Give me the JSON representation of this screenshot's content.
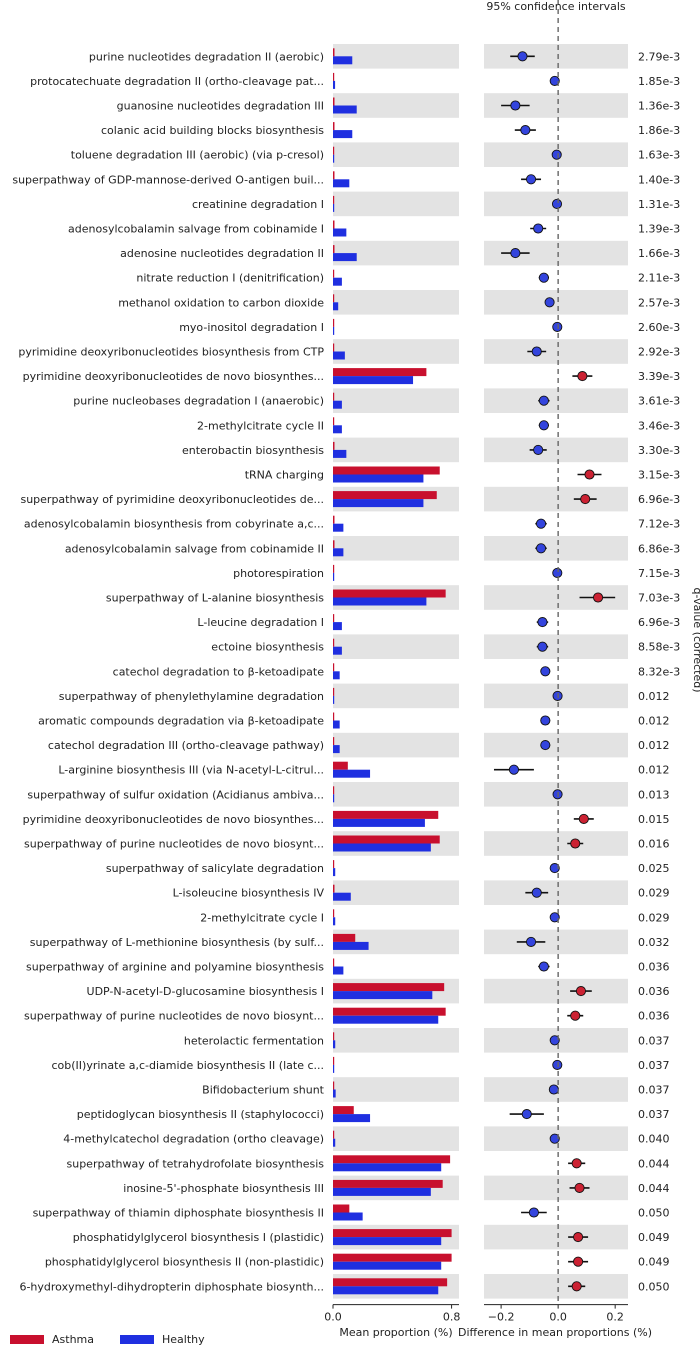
{
  "chart_data": {
    "type": "extended-error-bar",
    "title": "95% confidence intervals",
    "left_xlabel": "Mean proportion (%)",
    "right_xlabel": "Difference in mean proportions (%)",
    "qvalue_label": "q-value (corrected)",
    "left_xlim": [
      0,
      0.85
    ],
    "left_ticks": [
      {
        "v": 0.0,
        "label": "0.0"
      },
      {
        "v": 0.8,
        "label": "0.8"
      }
    ],
    "right_xlim": [
      -0.26,
      0.245
    ],
    "right_ticks": [
      {
        "v": -0.2,
        "label": "−0.2"
      },
      {
        "v": 0.0,
        "label": "0.0"
      },
      {
        "v": 0.2,
        "label": "0.2"
      }
    ],
    "groups": [
      {
        "name": "Asthma",
        "color": "#c8102e"
      },
      {
        "name": "Healthy",
        "color": "#1f2fe0"
      }
    ],
    "colors": {
      "asthma": "#c8102e",
      "healthy": "#1f2fe0",
      "neg_dot": "#3344dd",
      "pos_dot": "#cc2233",
      "band": "#e3e3e3"
    },
    "rows": [
      {
        "label": "purine nucleotides degradation II (aerobic)",
        "asthma": 0.01,
        "healthy": 0.13,
        "diff": -0.125,
        "ci": [
          -0.168,
          -0.082
        ],
        "q": "2.79e-3"
      },
      {
        "label": "protocatechuate degradation II (ortho-cleavage pat...",
        "asthma": 0.002,
        "healthy": 0.014,
        "diff": -0.012,
        "ci": [
          -0.016,
          -0.008
        ],
        "q": "1.85e-3"
      },
      {
        "label": "guanosine nucleotides degradation III",
        "asthma": 0.01,
        "healthy": 0.16,
        "diff": -0.15,
        "ci": [
          -0.2,
          -0.1
        ],
        "q": "1.36e-3"
      },
      {
        "label": "colanic acid building blocks biosynthesis",
        "asthma": 0.01,
        "healthy": 0.13,
        "diff": -0.115,
        "ci": [
          -0.152,
          -0.078
        ],
        "q": "1.86e-3"
      },
      {
        "label": "toluene degradation III (aerobic) (via p-cresol)",
        "asthma": 0.001,
        "healthy": 0.008,
        "diff": -0.005,
        "ci": [
          -0.008,
          -0.002
        ],
        "q": "1.63e-3"
      },
      {
        "label": "superpathway of GDP-mannose-derived O-antigen buil...",
        "asthma": 0.01,
        "healthy": 0.11,
        "diff": -0.095,
        "ci": [
          -0.13,
          -0.06
        ],
        "q": "1.40e-3"
      },
      {
        "label": "creatinine degradation I",
        "asthma": 0.001,
        "healthy": 0.005,
        "diff": -0.004,
        "ci": [
          -0.007,
          -0.001
        ],
        "q": "1.31e-3"
      },
      {
        "label": "adenosylcobalamin salvage from cobinamide I",
        "asthma": 0.01,
        "healthy": 0.09,
        "diff": -0.07,
        "ci": [
          -0.098,
          -0.042
        ],
        "q": "1.39e-3"
      },
      {
        "label": "adenosine nucleotides degradation II",
        "asthma": 0.01,
        "healthy": 0.16,
        "diff": -0.15,
        "ci": [
          -0.2,
          -0.1
        ],
        "q": "1.66e-3"
      },
      {
        "label": "nitrate reduction I (denitrification)",
        "asthma": 0.005,
        "healthy": 0.06,
        "diff": -0.05,
        "ci": [
          -0.068,
          -0.032
        ],
        "q": "2.11e-3"
      },
      {
        "label": "methanol oxidation to carbon dioxide",
        "asthma": 0.003,
        "healthy": 0.035,
        "diff": -0.03,
        "ci": [
          -0.042,
          -0.018
        ],
        "q": "2.57e-3"
      },
      {
        "label": "myo-inositol degradation I",
        "asthma": 0.001,
        "healthy": 0.004,
        "diff": -0.003,
        "ci": [
          -0.006,
          0.0
        ],
        "q": "2.60e-3"
      },
      {
        "label": "pyrimidine deoxyribonucleotides biosynthesis from CTP",
        "asthma": 0.008,
        "healthy": 0.08,
        "diff": -0.075,
        "ci": [
          -0.108,
          -0.042
        ],
        "q": "2.92e-3"
      },
      {
        "label": "pyrimidine deoxyribonucleotides de novo biosynthes...",
        "asthma": 0.63,
        "healthy": 0.54,
        "diff": 0.085,
        "ci": [
          0.05,
          0.12
        ],
        "q": "3.39e-3"
      },
      {
        "label": "purine nucleobases degradation I (anaerobic)",
        "asthma": 0.005,
        "healthy": 0.06,
        "diff": -0.05,
        "ci": [
          -0.07,
          -0.03
        ],
        "q": "3.61e-3"
      },
      {
        "label": "2-methylcitrate cycle II",
        "asthma": 0.005,
        "healthy": 0.06,
        "diff": -0.05,
        "ci": [
          -0.068,
          -0.032
        ],
        "q": "3.46e-3"
      },
      {
        "label": "enterobactin biosynthesis",
        "asthma": 0.01,
        "healthy": 0.09,
        "diff": -0.07,
        "ci": [
          -0.1,
          -0.04
        ],
        "q": "3.30e-3"
      },
      {
        "label": "tRNA charging",
        "asthma": 0.72,
        "healthy": 0.61,
        "diff": 0.11,
        "ci": [
          0.068,
          0.152
        ],
        "q": "3.15e-3"
      },
      {
        "label": "superpathway of pyrimidine deoxyribonucleotides de...",
        "asthma": 0.7,
        "healthy": 0.61,
        "diff": 0.095,
        "ci": [
          0.055,
          0.135
        ],
        "q": "6.96e-3"
      },
      {
        "label": "adenosylcobalamin biosynthesis from cobyrinate a,c...",
        "asthma": 0.01,
        "healthy": 0.07,
        "diff": -0.06,
        "ci": [
          -0.08,
          -0.04
        ],
        "q": "7.12e-3"
      },
      {
        "label": "adenosylcobalamin salvage from cobinamide II",
        "asthma": 0.01,
        "healthy": 0.07,
        "diff": -0.06,
        "ci": [
          -0.08,
          -0.04
        ],
        "q": "6.86e-3"
      },
      {
        "label": "photorespiration",
        "asthma": 0.001,
        "healthy": 0.004,
        "diff": -0.003,
        "ci": [
          -0.006,
          0.0
        ],
        "q": "7.15e-3"
      },
      {
        "label": "superpathway of L-alanine biosynthesis",
        "asthma": 0.76,
        "healthy": 0.63,
        "diff": 0.14,
        "ci": [
          0.075,
          0.2
        ],
        "q": "7.03e-3"
      },
      {
        "label": "L-leucine degradation I",
        "asthma": 0.005,
        "healthy": 0.06,
        "diff": -0.055,
        "ci": [
          -0.075,
          -0.035
        ],
        "q": "6.96e-3"
      },
      {
        "label": "ectoine biosynthesis",
        "asthma": 0.005,
        "healthy": 0.06,
        "diff": -0.055,
        "ci": [
          -0.075,
          -0.035
        ],
        "q": "8.58e-3"
      },
      {
        "label": "catechol degradation to &beta;-ketoadipate",
        "asthma": 0.004,
        "healthy": 0.045,
        "diff": -0.045,
        "ci": [
          -0.062,
          -0.028
        ],
        "q": "8.32e-3"
      },
      {
        "label": "superpathway of phenylethylamine degradation",
        "asthma": 0.001,
        "healthy": 0.005,
        "diff": -0.002,
        "ci": [
          -0.005,
          0.001
        ],
        "q": "0.012"
      },
      {
        "label": "aromatic compounds degradation via &beta;-ketoadipate",
        "asthma": 0.004,
        "healthy": 0.045,
        "diff": -0.045,
        "ci": [
          -0.062,
          -0.028
        ],
        "q": "0.012"
      },
      {
        "label": "catechol degradation III (ortho-cleavage pathway)",
        "asthma": 0.004,
        "healthy": 0.045,
        "diff": -0.045,
        "ci": [
          -0.062,
          -0.028
        ],
        "q": "0.012"
      },
      {
        "label": "L-arginine biosynthesis III (via N-acetyl-L-citrul...",
        "asthma": 0.1,
        "healthy": 0.25,
        "diff": -0.155,
        "ci": [
          -0.225,
          -0.085
        ],
        "q": "0.012"
      },
      {
        "label": "superpathway of sulfur oxidation (Acidianus ambiva...",
        "asthma": 0.001,
        "healthy": 0.004,
        "diff": -0.002,
        "ci": [
          -0.005,
          0.001
        ],
        "q": "0.013"
      },
      {
        "label": "pyrimidine deoxyribonucleotides de novo biosynthes...",
        "asthma": 0.71,
        "healthy": 0.62,
        "diff": 0.09,
        "ci": [
          0.055,
          0.125
        ],
        "q": "0.015"
      },
      {
        "label": "superpathway of purine nucleotides de novo biosynt...",
        "asthma": 0.72,
        "healthy": 0.66,
        "diff": 0.06,
        "ci": [
          0.032,
          0.088
        ],
        "q": "0.016"
      },
      {
        "label": "superpathway of salicylate degradation",
        "asthma": 0.002,
        "healthy": 0.015,
        "diff": -0.012,
        "ci": [
          -0.016,
          -0.008
        ],
        "q": "0.025"
      },
      {
        "label": "L-isoleucine biosynthesis IV",
        "asthma": 0.01,
        "healthy": 0.12,
        "diff": -0.075,
        "ci": [
          -0.115,
          -0.035
        ],
        "q": "0.029"
      },
      {
        "label": "2-methylcitrate cycle I",
        "asthma": 0.002,
        "healthy": 0.015,
        "diff": -0.012,
        "ci": [
          -0.016,
          -0.008
        ],
        "q": "0.029"
      },
      {
        "label": "superpathway of L-methionine biosynthesis (by sulf...",
        "asthma": 0.15,
        "healthy": 0.24,
        "diff": -0.095,
        "ci": [
          -0.145,
          -0.045
        ],
        "q": "0.032"
      },
      {
        "label": "superpathway of arginine and polyamine biosynthesis",
        "asthma": 0.005,
        "healthy": 0.07,
        "diff": -0.05,
        "ci": [
          -0.07,
          -0.03
        ],
        "q": "0.036"
      },
      {
        "label": "UDP-N-acetyl-D-glucosamine biosynthesis I",
        "asthma": 0.75,
        "healthy": 0.67,
        "diff": 0.08,
        "ci": [
          0.042,
          0.118
        ],
        "q": "0.036"
      },
      {
        "label": "superpathway of purine nucleotides de novo biosynt...",
        "asthma": 0.76,
        "healthy": 0.71,
        "diff": 0.06,
        "ci": [
          0.032,
          0.088
        ],
        "q": "0.036"
      },
      {
        "label": "heterolactic fermentation",
        "asthma": 0.002,
        "healthy": 0.015,
        "diff": -0.012,
        "ci": [
          -0.016,
          -0.008
        ],
        "q": "0.037"
      },
      {
        "label": "cob(II)yrinate a,c-diamide biosynthesis II (late c...",
        "asthma": 0.001,
        "healthy": 0.004,
        "diff": -0.003,
        "ci": [
          -0.006,
          0.0
        ],
        "q": "0.037"
      },
      {
        "label": "Bifidobacterium shunt",
        "asthma": 0.002,
        "healthy": 0.018,
        "diff": -0.015,
        "ci": [
          -0.02,
          -0.01
        ],
        "q": "0.037"
      },
      {
        "label": "peptidoglycan biosynthesis II (staphylococci)",
        "asthma": 0.14,
        "healthy": 0.25,
        "diff": -0.11,
        "ci": [
          -0.17,
          -0.05
        ],
        "q": "0.037"
      },
      {
        "label": "4-methylcatechol degradation (ortho cleavage)",
        "asthma": 0.002,
        "healthy": 0.015,
        "diff": -0.012,
        "ci": [
          -0.016,
          -0.008
        ],
        "q": "0.040"
      },
      {
        "label": "superpathway of tetrahydrofolate biosynthesis",
        "asthma": 0.79,
        "healthy": 0.73,
        "diff": 0.065,
        "ci": [
          0.035,
          0.095
        ],
        "q": "0.044"
      },
      {
        "label": "inosine-5'-phosphate biosynthesis III",
        "asthma": 0.74,
        "healthy": 0.66,
        "diff": 0.075,
        "ci": [
          0.04,
          0.11
        ],
        "q": "0.044"
      },
      {
        "label": "superpathway of thiamin diphosphate biosynthesis II",
        "asthma": 0.11,
        "healthy": 0.2,
        "diff": -0.085,
        "ci": [
          -0.13,
          -0.04
        ],
        "q": "0.050"
      },
      {
        "label": "phosphatidylglycerol biosynthesis I (plastidic)",
        "asthma": 0.8,
        "healthy": 0.73,
        "diff": 0.07,
        "ci": [
          0.035,
          0.105
        ],
        "q": "0.049"
      },
      {
        "label": "phosphatidylglycerol biosynthesis II (non-plastidic)",
        "asthma": 0.8,
        "healthy": 0.73,
        "diff": 0.07,
        "ci": [
          0.035,
          0.105
        ],
        "q": "0.049"
      },
      {
        "label": "6-hydroxymethyl-dihydropterin diphosphate biosynth...",
        "asthma": 0.77,
        "healthy": 0.71,
        "diff": 0.065,
        "ci": [
          0.035,
          0.095
        ],
        "q": "0.050"
      }
    ]
  }
}
